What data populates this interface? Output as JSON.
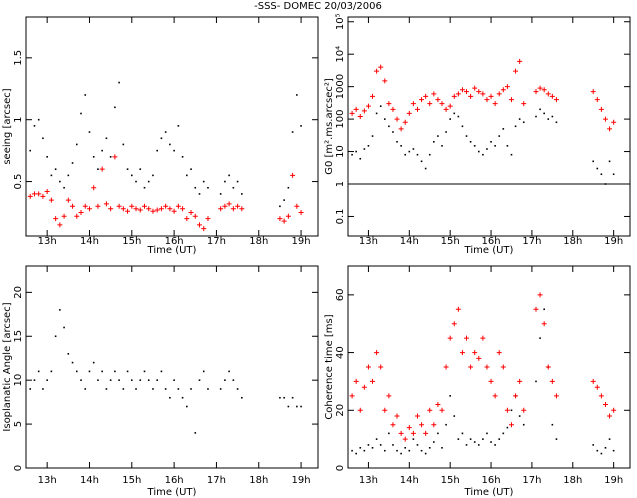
{
  "title": "-SSS-  DOMEC 20/03/2006",
  "chart_data": [
    {
      "type": "scatter",
      "ylabel": "seeing [arcsec]",
      "xlabel": "Time (UT)",
      "x": [
        12.6,
        12.7,
        12.8,
        12.9,
        13.0,
        13.1,
        13.2,
        13.3,
        13.4,
        13.5,
        13.6,
        13.7,
        13.8,
        13.9,
        14.0,
        14.1,
        14.2,
        14.3,
        14.4,
        14.5,
        14.6,
        14.7,
        14.8,
        14.9,
        15.0,
        15.1,
        15.2,
        15.3,
        15.4,
        15.5,
        15.6,
        15.7,
        15.8,
        15.9,
        16.0,
        16.1,
        16.2,
        16.3,
        16.4,
        16.5,
        16.6,
        16.7,
        16.8,
        16.9,
        17.0,
        17.1,
        17.2,
        17.3,
        17.4,
        17.5,
        17.6,
        17.7,
        17.8,
        17.9,
        18.0,
        18.1,
        18.2,
        18.3,
        18.4,
        18.5,
        18.6,
        18.7,
        18.8,
        18.9,
        19.0
      ],
      "xlim": [
        12.5,
        19.4
      ],
      "xticks": [
        {
          "value": 13,
          "label": "13h"
        },
        {
          "value": 14,
          "label": "14h"
        },
        {
          "value": 15,
          "label": "15h"
        },
        {
          "value": 16,
          "label": "16h"
        },
        {
          "value": 17,
          "label": "17h"
        },
        {
          "value": 18,
          "label": "18h"
        },
        {
          "value": 19,
          "label": "19h"
        }
      ],
      "ylim": [
        0.06,
        1.83
      ],
      "yticks": [
        0.5,
        1,
        1.5
      ],
      "series": [
        {
          "color": "#000000",
          "values": [
            0.75,
            0.95,
            1.0,
            0.85,
            0.7,
            0.55,
            0.6,
            0.5,
            0.45,
            0.55,
            0.65,
            0.8,
            1.05,
            1.2,
            0.9,
            0.7,
            0.6,
            0.75,
            0.85,
            0.7,
            1.1,
            1.3,
            0.8,
            0.6,
            0.55,
            0.5,
            0.6,
            0.45,
            0.5,
            0.55,
            0.75,
            0.85,
            0.9,
            0.8,
            0.75,
            0.95,
            0.7,
            0.55,
            0.6,
            0.45,
            0.4,
            0.5,
            0.45,
            null,
            null,
            0.4,
            0.5,
            0.55,
            0.45,
            0.5,
            0.4,
            null,
            null,
            null,
            null,
            null,
            null,
            null,
            null,
            0.3,
            0.35,
            0.45,
            0.9,
            1.2,
            0.95
          ]
        },
        {
          "color": "#ff0000",
          "values": [
            0.38,
            0.4,
            0.4,
            0.38,
            0.42,
            0.35,
            0.2,
            0.15,
            0.22,
            0.35,
            0.3,
            0.22,
            0.25,
            0.3,
            0.28,
            0.45,
            0.3,
            0.6,
            0.32,
            0.28,
            0.7,
            0.3,
            0.28,
            0.26,
            0.3,
            0.28,
            0.27,
            0.3,
            0.28,
            0.26,
            0.27,
            0.28,
            0.3,
            0.28,
            0.26,
            0.3,
            0.28,
            0.2,
            0.25,
            0.22,
            0.15,
            0.12,
            0.2,
            null,
            null,
            0.28,
            0.3,
            0.32,
            0.28,
            0.3,
            0.28,
            null,
            null,
            null,
            null,
            null,
            null,
            null,
            null,
            0.2,
            0.18,
            0.22,
            0.55,
            0.3,
            0.25
          ]
        }
      ]
    },
    {
      "type": "scatter",
      "ylabel": "G0 [m².ms.arcsec²]",
      "xlabel": "Time (UT)",
      "x": [
        12.6,
        12.7,
        12.8,
        12.9,
        13.0,
        13.1,
        13.2,
        13.3,
        13.4,
        13.5,
        13.6,
        13.7,
        13.8,
        13.9,
        14.0,
        14.1,
        14.2,
        14.3,
        14.4,
        14.5,
        14.6,
        14.7,
        14.8,
        14.9,
        15.0,
        15.1,
        15.2,
        15.3,
        15.4,
        15.5,
        15.6,
        15.7,
        15.8,
        15.9,
        16.0,
        16.1,
        16.2,
        16.3,
        16.4,
        16.5,
        16.6,
        16.7,
        16.8,
        16.9,
        17.0,
        17.1,
        17.2,
        17.3,
        17.4,
        17.5,
        17.6,
        17.7,
        17.8,
        17.9,
        18.0,
        18.1,
        18.2,
        18.3,
        18.4,
        18.5,
        18.6,
        18.7,
        18.8,
        18.9,
        19.0
      ],
      "xlim": [
        12.5,
        19.4
      ],
      "xticks": [
        {
          "value": 13,
          "label": "13h"
        },
        {
          "value": 14,
          "label": "14h"
        },
        {
          "value": 15,
          "label": "15h"
        },
        {
          "value": 16,
          "label": "16h"
        },
        {
          "value": 17,
          "label": "17h"
        },
        {
          "value": 18,
          "label": "18h"
        },
        {
          "value": 19,
          "label": "19h"
        }
      ],
      "yscale": "log",
      "ylim": [
        0.025,
        140000
      ],
      "yticks": [
        0.1,
        1,
        10,
        100,
        1000,
        {
          "value": 10000,
          "label": "10⁴"
        },
        {
          "value": 100000,
          "label": "10⁵"
        }
      ],
      "hlines": [
        1
      ],
      "series": [
        {
          "color": "#000000",
          "values": [
            8,
            10,
            6,
            12,
            15,
            30,
            150,
            250,
            100,
            60,
            40,
            20,
            15,
            8,
            10,
            12,
            8,
            5,
            3,
            8,
            20,
            30,
            15,
            40,
            100,
            150,
            120,
            60,
            30,
            20,
            15,
            10,
            8,
            12,
            20,
            15,
            30,
            50,
            15,
            8,
            60,
            100,
            80,
            null,
            null,
            120,
            200,
            150,
            100,
            120,
            80,
            null,
            null,
            null,
            null,
            null,
            null,
            null,
            null,
            5,
            3,
            2,
            1,
            5,
            2
          ]
        },
        {
          "color": "#ff0000",
          "values": [
            150,
            200,
            120,
            180,
            250,
            500,
            3000,
            4000,
            1500,
            300,
            200,
            100,
            50,
            80,
            150,
            300,
            200,
            400,
            500,
            300,
            600,
            400,
            300,
            200,
            250,
            500,
            600,
            800,
            700,
            500,
            900,
            700,
            600,
            400,
            500,
            300,
            600,
            800,
            1000,
            400,
            3000,
            6000,
            300,
            null,
            null,
            700,
            900,
            800,
            600,
            500,
            400,
            null,
            null,
            null,
            null,
            null,
            null,
            null,
            null,
            700,
            400,
            200,
            100,
            50,
            80
          ]
        }
      ]
    },
    {
      "type": "scatter",
      "ylabel": "Isoplanatic Angle [arcsec]",
      "xlabel": "Time (UT)",
      "x": [
        12.6,
        12.7,
        12.8,
        12.9,
        13.0,
        13.1,
        13.2,
        13.3,
        13.4,
        13.5,
        13.6,
        13.7,
        13.8,
        13.9,
        14.0,
        14.1,
        14.2,
        14.3,
        14.4,
        14.5,
        14.6,
        14.7,
        14.8,
        14.9,
        15.0,
        15.1,
        15.2,
        15.3,
        15.4,
        15.5,
        15.6,
        15.7,
        15.8,
        15.9,
        16.0,
        16.1,
        16.2,
        16.3,
        16.4,
        16.5,
        16.6,
        16.7,
        16.8,
        16.9,
        17.0,
        17.1,
        17.2,
        17.3,
        17.4,
        17.5,
        17.6,
        17.7,
        17.8,
        17.9,
        18.0,
        18.1,
        18.2,
        18.3,
        18.4,
        18.5,
        18.6,
        18.7,
        18.8,
        18.9,
        19.0
      ],
      "xlim": [
        12.5,
        19.4
      ],
      "xticks": [
        {
          "value": 13,
          "label": "13h"
        },
        {
          "value": 14,
          "label": "14h"
        },
        {
          "value": 15,
          "label": "15h"
        },
        {
          "value": 16,
          "label": "16h"
        },
        {
          "value": 17,
          "label": "17h"
        },
        {
          "value": 18,
          "label": "18h"
        },
        {
          "value": 19,
          "label": "19h"
        }
      ],
      "ylim": [
        0,
        23
      ],
      "yticks": [
        0,
        5,
        10,
        15,
        20
      ],
      "series": [
        {
          "color": "#000000",
          "values": [
            9,
            10,
            11,
            9,
            10,
            11,
            15,
            18,
            16,
            13,
            12,
            11,
            10,
            9,
            11,
            12,
            10,
            11,
            9,
            10,
            11,
            10,
            9,
            11,
            10,
            9,
            10,
            11,
            10,
            9,
            10,
            11,
            9,
            8,
            10,
            9,
            8,
            7,
            9,
            4,
            10,
            11,
            9,
            null,
            null,
            9,
            10,
            11,
            10,
            9,
            8,
            null,
            null,
            null,
            null,
            null,
            null,
            null,
            null,
            8,
            8,
            7,
            8,
            7,
            7
          ]
        }
      ]
    },
    {
      "type": "scatter",
      "ylabel": "Coherence time [ms]",
      "xlabel": "Time (UT)",
      "x": [
        12.6,
        12.7,
        12.8,
        12.9,
        13.0,
        13.1,
        13.2,
        13.3,
        13.4,
        13.5,
        13.6,
        13.7,
        13.8,
        13.9,
        14.0,
        14.1,
        14.2,
        14.3,
        14.4,
        14.5,
        14.6,
        14.7,
        14.8,
        14.9,
        15.0,
        15.1,
        15.2,
        15.3,
        15.4,
        15.5,
        15.6,
        15.7,
        15.8,
        15.9,
        16.0,
        16.1,
        16.2,
        16.3,
        16.4,
        16.5,
        16.6,
        16.7,
        16.8,
        16.9,
        17.0,
        17.1,
        17.2,
        17.3,
        17.4,
        17.5,
        17.6,
        17.7,
        17.8,
        17.9,
        18.0,
        18.1,
        18.2,
        18.3,
        18.4,
        18.5,
        18.6,
        18.7,
        18.8,
        18.9,
        19.0
      ],
      "xlim": [
        12.5,
        19.4
      ],
      "xticks": [
        {
          "value": 13,
          "label": "13h"
        },
        {
          "value": 14,
          "label": "14h"
        },
        {
          "value": 15,
          "label": "15h"
        },
        {
          "value": 16,
          "label": "16h"
        },
        {
          "value": 17,
          "label": "17h"
        },
        {
          "value": 18,
          "label": "18h"
        },
        {
          "value": 19,
          "label": "19h"
        }
      ],
      "ylim": [
        0,
        70
      ],
      "yticks": [
        0,
        20,
        40,
        60
      ],
      "series": [
        {
          "color": "#000000",
          "values": [
            6,
            5,
            7,
            6,
            8,
            7,
            10,
            8,
            6,
            12,
            8,
            6,
            5,
            7,
            6,
            10,
            8,
            6,
            5,
            7,
            9,
            12,
            7,
            15,
            25,
            18,
            10,
            12,
            8,
            10,
            9,
            8,
            10,
            12,
            9,
            8,
            10,
            12,
            14,
            20,
            25,
            18,
            15,
            null,
            null,
            30,
            45,
            55,
            35,
            15,
            10,
            null,
            null,
            null,
            null,
            null,
            null,
            null,
            null,
            8,
            6,
            5,
            7,
            10,
            6
          ]
        },
        {
          "color": "#ff0000",
          "values": [
            25,
            30,
            20,
            28,
            35,
            30,
            40,
            35,
            20,
            25,
            15,
            18,
            12,
            10,
            14,
            12,
            18,
            15,
            12,
            20,
            15,
            22,
            20,
            35,
            45,
            50,
            55,
            40,
            45,
            35,
            40,
            38,
            45,
            35,
            30,
            25,
            40,
            35,
            20,
            15,
            25,
            30,
            20,
            null,
            null,
            55,
            60,
            50,
            35,
            30,
            25,
            null,
            null,
            null,
            null,
            null,
            null,
            null,
            null,
            30,
            28,
            25,
            22,
            18,
            20
          ]
        }
      ]
    }
  ]
}
